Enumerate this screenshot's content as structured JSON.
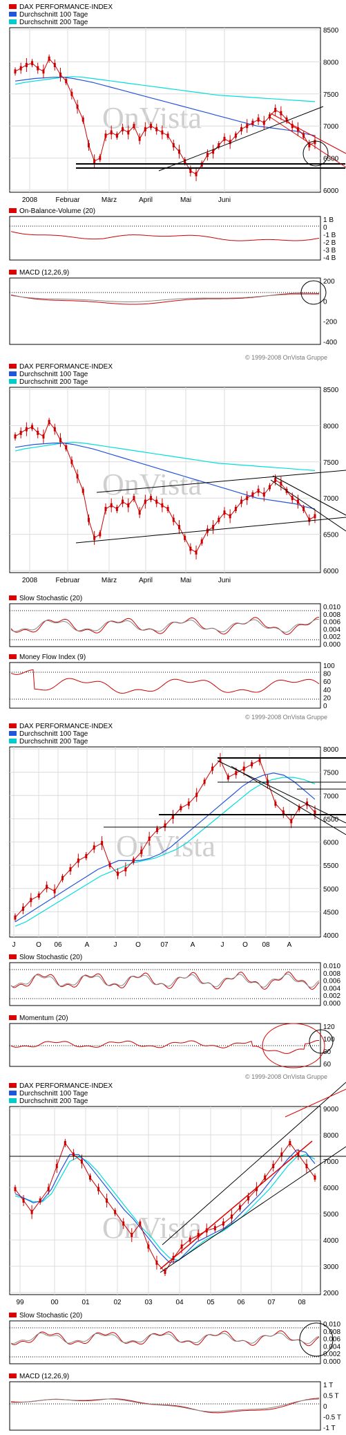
{
  "colors": {
    "price": "#cc0000",
    "ma100": "#2255dd",
    "ma200": "#00dddd",
    "trend_black": "#000000",
    "trend_red": "#dd0000",
    "signal_gray": "#888888",
    "panel_bg": "#eeeeee",
    "legend_red": "#dd0000",
    "legend_blue": "#2255dd",
    "legend_cyan": "#00cccc"
  },
  "watermark": "OnVista",
  "copyright": "© 1999-2008 OnVista Gruppe",
  "chart_data": [
    {
      "id": "block1",
      "type": "candlestick",
      "legend": [
        "DAX PERFORMANCE-INDEX",
        "Durchschnitt 100 Tage",
        "Durchschnitt 200 Tage"
      ],
      "x_labels": [
        "2008",
        "Februar",
        "März",
        "April",
        "Mai",
        "Juni"
      ],
      "y_ticks": [
        "8500",
        "8000",
        "7500",
        "7000",
        "6500",
        "6000"
      ],
      "ylim": [
        6000,
        8500
      ],
      "series": [
        {
          "name": "DAX PERFORMANCE-INDEX",
          "values": [
            7850,
            7900,
            7950,
            7980,
            7900,
            7850,
            8050,
            7950,
            7800,
            7700,
            7500,
            7300,
            7100,
            6700,
            6450,
            6500,
            6850,
            6900,
            6850,
            6950,
            6900,
            7000,
            6800,
            6950,
            7000,
            6950,
            6900,
            6850,
            6700,
            6600,
            6450,
            6300,
            6250,
            6400,
            6550,
            6600,
            6700,
            6800,
            6750,
            6850,
            6950,
            7000,
            7050,
            7100,
            7050,
            7150,
            7250,
            7200,
            7100,
            7000,
            6950,
            6850,
            6700,
            6750
          ]
        },
        {
          "name": "Durchschnitt 100 Tage",
          "values": [
            7700,
            7720,
            7740,
            7750,
            7760,
            7760,
            7740,
            7710,
            7680,
            7640,
            7600,
            7560,
            7520,
            7480,
            7440,
            7400,
            7360,
            7320,
            7280,
            7240,
            7200,
            7160,
            7120,
            7080,
            7040,
            7000,
            6980,
            6960,
            6940,
            6920,
            6880,
            6850
          ]
        },
        {
          "name": "Durchschnitt 200 Tage",
          "values": [
            7650,
            7680,
            7700,
            7720,
            7740,
            7760,
            7770,
            7760,
            7740,
            7720,
            7700,
            7680,
            7660,
            7640,
            7620,
            7600,
            7580,
            7560,
            7540,
            7520,
            7500,
            7480,
            7470,
            7460,
            7450,
            7440,
            7430,
            7420,
            7410,
            7400,
            7390,
            7380
          ]
        }
      ],
      "indicators": [
        {
          "title": "On-Balance-Volume (20)",
          "y_ticks": [
            "1 B",
            "0",
            "-1 B",
            "-2 B",
            "-3 B",
            "-4 B"
          ]
        },
        {
          "title": "MACD (12,26,9)",
          "y_ticks": [
            "200",
            "0",
            "-200",
            "-400"
          ]
        }
      ]
    },
    {
      "id": "block2",
      "type": "candlestick",
      "legend": [
        "DAX PERFORMANCE-INDEX",
        "Durchschnitt 100 Tage",
        "Durchschnitt 200 Tage"
      ],
      "x_labels": [
        "2008",
        "Februar",
        "März",
        "April",
        "Mai",
        "Juni"
      ],
      "y_ticks": [
        "8500",
        "8000",
        "7500",
        "7000",
        "6500",
        "6000"
      ],
      "ylim": [
        6000,
        8500
      ],
      "indicators": [
        {
          "title": "Slow Stochastic (20)",
          "y_ticks": [
            "0.010",
            "0.008",
            "0.006",
            "0.004",
            "0.002",
            "0.000"
          ]
        },
        {
          "title": "Money Flow Index (9)",
          "y_ticks": [
            "100",
            "80",
            "60",
            "40",
            "20",
            "0"
          ]
        }
      ]
    },
    {
      "id": "block3",
      "type": "candlestick",
      "legend": [
        "DAX PERFORMANCE-INDEX",
        "Durchschnitt 100 Tage",
        "Durchschnitt 200 Tage"
      ],
      "x_labels": [
        "J",
        "O",
        "06",
        "A",
        "J",
        "O",
        "07",
        "A",
        "J",
        "O",
        "08",
        "A"
      ],
      "y_ticks": [
        "8000",
        "7500",
        "7000",
        "6500",
        "6000",
        "5500",
        "5000",
        "4500",
        "4000"
      ],
      "ylim": [
        4000,
        8250
      ],
      "series": [
        {
          "name": "DAX PERFORMANCE-INDEX",
          "values": [
            4400,
            4600,
            4800,
            4900,
            5100,
            5000,
            5300,
            5500,
            5700,
            5800,
            6000,
            6100,
            5600,
            5400,
            5500,
            5700,
            5900,
            6200,
            6400,
            6500,
            6700,
            6900,
            7000,
            7200,
            7500,
            7800,
            8000,
            7600,
            7700,
            7800,
            7900,
            8000,
            7500,
            7000,
            6800,
            6600,
            6900,
            7000,
            6800
          ]
        },
        {
          "name": "Durchschnitt 100 Tage",
          "values": [
            4300,
            4450,
            4600,
            4750,
            4900,
            5050,
            5200,
            5350,
            5500,
            5600,
            5700,
            5700,
            5700,
            5750,
            5850,
            6000,
            6200,
            6400,
            6600,
            6800,
            7000,
            7200,
            7400,
            7550,
            7650,
            7700,
            7650,
            7500,
            7300,
            7100
          ]
        },
        {
          "name": "Durchschnitt 200 Tage",
          "values": [
            4200,
            4300,
            4450,
            4600,
            4750,
            4900,
            5050,
            5200,
            5350,
            5450,
            5550,
            5650,
            5700,
            5750,
            5850,
            5950,
            6100,
            6300,
            6500,
            6700,
            6900,
            7100,
            7300,
            7450,
            7550,
            7600,
            7600,
            7550,
            7450
          ]
        }
      ],
      "indicators": [
        {
          "title": "Slow Stochastic (20)",
          "y_ticks": [
            "0.010",
            "0.008",
            "0.006",
            "0.004",
            "0.002",
            "0.000"
          ]
        },
        {
          "title": "Momentum (20)",
          "y_ticks": [
            "120",
            "100",
            "80",
            "60"
          ]
        }
      ]
    },
    {
      "id": "block4",
      "type": "candlestick",
      "legend": [
        "DAX PERFORMANCE-INDEX",
        "Durchschnitt 100 Tage",
        "Durchschnitt 200 Tage"
      ],
      "x_labels": [
        "99",
        "00",
        "01",
        "02",
        "03",
        "04",
        "05",
        "06",
        "07",
        "08"
      ],
      "y_ticks": [
        "9000",
        "8000",
        "7000",
        "6000",
        "5000",
        "4000",
        "3000",
        "2000"
      ],
      "ylim": [
        1500,
        9500
      ],
      "series": [
        {
          "name": "DAX PERFORMANCE-INDEX",
          "values": [
            6000,
            5500,
            5000,
            5500,
            6000,
            7000,
            8000,
            7500,
            7200,
            6500,
            6000,
            5500,
            5000,
            4500,
            4000,
            4500,
            3500,
            2800,
            2400,
            3000,
            3500,
            3800,
            4000,
            4200,
            4300,
            4500,
            4800,
            5200,
            5600,
            6000,
            6500,
            7000,
            7500,
            8000,
            7500,
            7000,
            6500
          ]
        },
        {
          "name": "Durchschnitt 100 Tage",
          "values": [
            5800,
            5600,
            5400,
            5500,
            6000,
            6800,
            7500,
            7500,
            7100,
            6600,
            6100,
            5600,
            5100,
            4700,
            4200,
            3700,
            3200,
            2800,
            2900,
            3300,
            3700,
            3900,
            4100,
            4300,
            4600,
            5000,
            5400,
            5800,
            6300,
            6800,
            7300,
            7700,
            7600,
            7100
          ]
        },
        {
          "name": "Durchschnitt 200 Tage",
          "values": [
            5700,
            5600,
            5450,
            5450,
            5800,
            6500,
            7200,
            7400,
            7200,
            6800,
            6300,
            5800,
            5300,
            4800,
            4300,
            3900,
            3400,
            3000,
            2900,
            3200,
            3500,
            3800,
            4000,
            4200,
            4500,
            4800,
            5200,
            5600,
            6000,
            6500,
            7000,
            7400,
            7500,
            7300
          ]
        }
      ],
      "indicators": [
        {
          "title": "Slow Stochastic (20)",
          "y_ticks": [
            "0.010",
            "0.008",
            "0.006",
            "0.004",
            "0.002",
            "0.000"
          ]
        },
        {
          "title": "MACD (12,26,9)",
          "y_ticks": [
            "1 T",
            "0.5 T",
            "0",
            "-0.5 T",
            "-1 T"
          ]
        }
      ]
    }
  ]
}
